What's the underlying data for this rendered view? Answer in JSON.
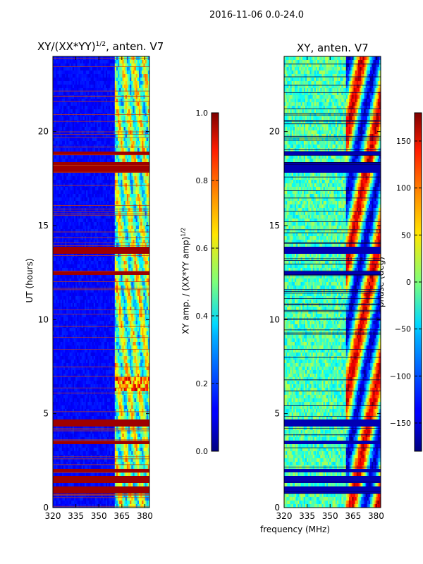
{
  "suptitle": "2016-11-06 0.0-24.0",
  "chart_data": [
    {
      "type": "heatmap",
      "title_prefix": "XY/(XX*YY)",
      "title_exponent": "1/2",
      "title_suffix": ", anten. V7",
      "xlabel": "",
      "ylabel": "UT (hours)",
      "xlim": [
        320,
        383
      ],
      "ylim": [
        0,
        24
      ],
      "x_ticks": [
        "320",
        "335",
        "350",
        "365",
        "380"
      ],
      "x_tick_values": [
        320,
        335,
        350,
        365,
        380
      ],
      "y_ticks": [
        "0",
        "5",
        "10",
        "15",
        "20"
      ],
      "y_tick_values": [
        0,
        5,
        10,
        15,
        20
      ],
      "colorbar": {
        "label_prefix": "XY amp. / (XX*YY amp)",
        "label_exponent": "1/2",
        "range": [
          0.0,
          1.0
        ],
        "ticks": [
          "0.0",
          "0.2",
          "0.4",
          "0.6",
          "0.8",
          "1.0"
        ],
        "tick_values": [
          0.0,
          0.2,
          0.4,
          0.6,
          0.8,
          1.0
        ],
        "colormap": "jet"
      },
      "flagged_bands_hours": [
        [
          0.8,
          1.1
        ],
        [
          1.4,
          1.6
        ],
        [
          1.9,
          2.1
        ],
        [
          3.4,
          3.6
        ],
        [
          4.4,
          4.6
        ],
        [
          12.4,
          12.6
        ],
        [
          13.5,
          13.9
        ],
        [
          17.9,
          18.3
        ],
        [
          18.7,
          19.0
        ]
      ],
      "strong_band": {
        "hours": [
          6.2,
          6.9
        ],
        "mhz": [
          364,
          383
        ],
        "value": 0.8
      }
    },
    {
      "type": "heatmap",
      "title_prefix": "XY, anten. V7",
      "xlabel": "frequency (MHz)",
      "ylabel": "",
      "xlim": [
        320,
        383
      ],
      "ylim": [
        0,
        24
      ],
      "x_ticks": [
        "320",
        "335",
        "350",
        "365",
        "380"
      ],
      "x_tick_values": [
        320,
        335,
        350,
        365,
        380
      ],
      "y_ticks": [
        "0",
        "5",
        "10",
        "15",
        "20"
      ],
      "y_tick_values": [
        0,
        5,
        10,
        15,
        20
      ],
      "colorbar": {
        "label": "phase (deg)",
        "range": [
          -180,
          180
        ],
        "ticks": [
          "−150",
          "−100",
          "−50",
          "0",
          "50",
          "100",
          "150"
        ],
        "tick_values": [
          -150,
          -100,
          -50,
          0,
          50,
          100,
          150
        ],
        "colormap": "jet"
      },
      "flagged_bands_hours": [
        [
          0.8,
          1.1
        ],
        [
          1.4,
          1.6
        ],
        [
          1.9,
          2.1
        ],
        [
          3.4,
          3.6
        ],
        [
          4.4,
          4.6
        ],
        [
          12.4,
          12.6
        ],
        [
          13.5,
          13.9
        ],
        [
          17.9,
          18.3
        ],
        [
          18.7,
          19.0
        ]
      ]
    }
  ]
}
